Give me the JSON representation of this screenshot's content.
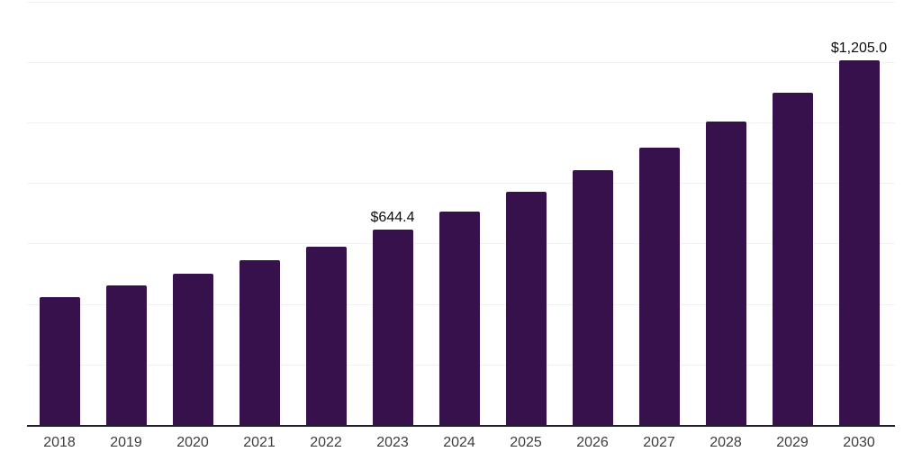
{
  "chart_data": {
    "type": "bar",
    "title": "",
    "xlabel": "",
    "ylabel": "",
    "categories": [
      "2018",
      "2019",
      "2020",
      "2021",
      "2022",
      "2023",
      "2024",
      "2025",
      "2026",
      "2027",
      "2028",
      "2029",
      "2030"
    ],
    "values": [
      422,
      461,
      501,
      545,
      590,
      644.4,
      706,
      770,
      841,
      917,
      1003,
      1098,
      1205
    ],
    "point_labels": [
      "",
      "",
      "",
      "",
      "",
      "$644.4",
      "",
      "",
      "",
      "",
      "",
      "",
      "$1,205.0"
    ],
    "ylim": [
      0,
      1400
    ],
    "grid_step": 200,
    "grid": true,
    "legend": false,
    "y_tick_labels_shown": false,
    "colors": {
      "bar": "#36114b",
      "axis": "#20202a",
      "grid": "#f1f1f4",
      "tick_label": "#3d3d3d",
      "value_label": "#0d0d0d",
      "background": "#ffffff"
    }
  }
}
